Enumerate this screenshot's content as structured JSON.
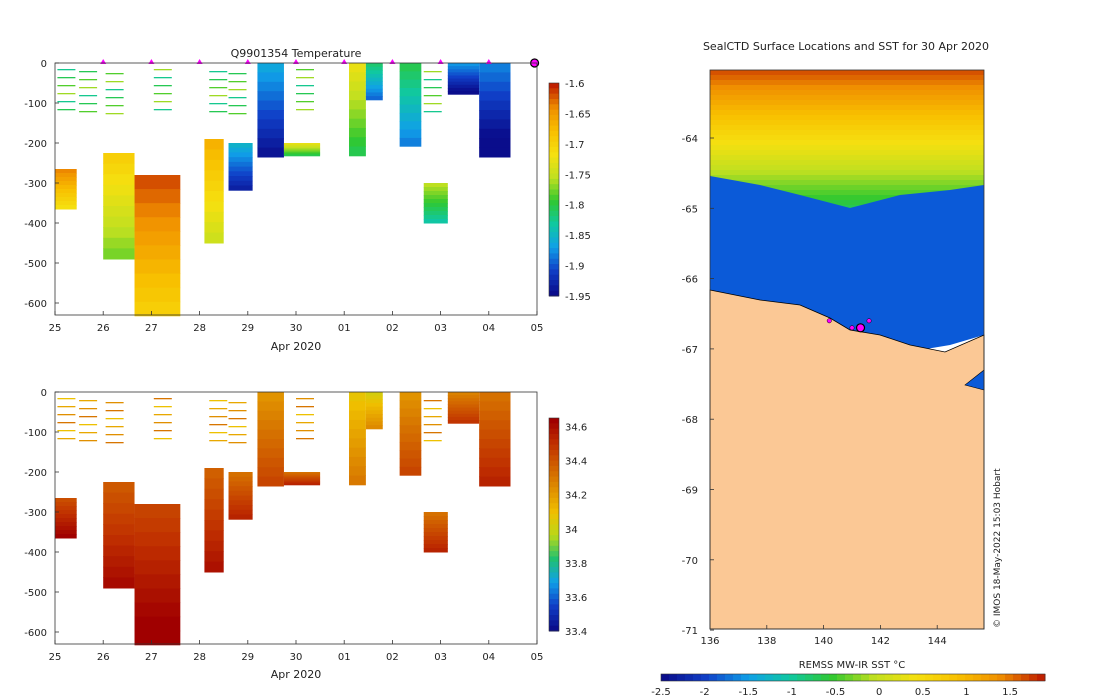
{
  "colors": {
    "temp_scale": [
      "#0a0d8c",
      "#1040c8",
      "#10a0e8",
      "#10c8a0",
      "#30c830",
      "#c0e020",
      "#f5e010",
      "#f8c000",
      "#f09000",
      "#c02000"
    ],
    "sal_scale": [
      "#0a0d8c",
      "#1040c8",
      "#10a0e8",
      "#20c070",
      "#b8d818",
      "#f0c000",
      "#e09000",
      "#d06000",
      "#c03000",
      "#a00000"
    ],
    "land": "#fbc895",
    "marker": "#ff00ff",
    "ice_blue": "#0b5ad8"
  },
  "chart_data": [
    {
      "type": "heatmap",
      "title": "Q9901354  Temperature",
      "xlabel": "Apr 2020",
      "ylabel": "",
      "x_tick_labels": [
        "25",
        "26",
        "27",
        "28",
        "29",
        "30",
        "01",
        "02",
        "03",
        "04",
        "05"
      ],
      "x_range_days": [
        25,
        35
      ],
      "y_tick_labels": [
        "0",
        "-100",
        "-200",
        "-300",
        "-400",
        "-500",
        "-600"
      ],
      "ylim": [
        -630,
        0
      ],
      "colorbar_ticks": [
        "-1.6",
        "-1.65",
        "-1.7",
        "-1.75",
        "-1.8",
        "-1.85",
        "-1.9",
        "-1.95"
      ],
      "colorbar_range": [
        -1.95,
        -1.6
      ],
      "surface_markers_day": [
        26,
        27,
        28,
        29,
        30,
        31,
        32,
        33,
        34,
        34.95
      ],
      "profiles": [
        {
          "start": 25.0,
          "end": 25.45,
          "top": -265,
          "bottom": -365,
          "value": -1.68
        },
        {
          "start": 26.0,
          "end": 26.65,
          "top": -225,
          "bottom": -490,
          "value": -1.74
        },
        {
          "start": 26.65,
          "end": 27.6,
          "top": -280,
          "bottom": -632,
          "value": -1.66
        },
        {
          "start": 28.1,
          "end": 28.5,
          "top": -190,
          "bottom": -450,
          "value": -1.71
        },
        {
          "start": 28.6,
          "end": 29.1,
          "top": -200,
          "bottom": -318,
          "value": -1.9
        },
        {
          "start": 29.2,
          "end": 29.75,
          "top": 0,
          "bottom": -235,
          "value": -1.91
        },
        {
          "start": 29.75,
          "end": 30.5,
          "top": -200,
          "bottom": -232,
          "value": -1.77
        },
        {
          "start": 31.1,
          "end": 31.45,
          "top": 0,
          "bottom": -232,
          "value": -1.77
        },
        {
          "start": 31.45,
          "end": 31.8,
          "top": 0,
          "bottom": -92,
          "value": -1.86
        },
        {
          "start": 32.15,
          "end": 32.6,
          "top": 0,
          "bottom": -208,
          "value": -1.85
        },
        {
          "start": 32.65,
          "end": 33.15,
          "top": -300,
          "bottom": -400,
          "value": -1.8
        },
        {
          "start": 33.15,
          "end": 33.8,
          "top": 0,
          "bottom": -78,
          "value": -1.92
        },
        {
          "start": 33.8,
          "end": 34.45,
          "top": 0,
          "bottom": -235,
          "value": -1.93
        }
      ]
    },
    {
      "type": "heatmap",
      "title": "",
      "xlabel": "Apr 2020",
      "ylabel": "",
      "x_tick_labels": [
        "25",
        "26",
        "27",
        "28",
        "29",
        "30",
        "01",
        "02",
        "03",
        "04",
        "05"
      ],
      "x_range_days": [
        25,
        35
      ],
      "y_tick_labels": [
        "0",
        "-100",
        "-200",
        "-300",
        "-400",
        "-500",
        "-600"
      ],
      "ylim": [
        -630,
        0
      ],
      "colorbar_ticks": [
        "34.6",
        "34.4",
        "34.2",
        "34",
        "33.8",
        "33.6",
        "33.4"
      ],
      "colorbar_range": [
        33.4,
        34.65
      ],
      "profiles": [
        {
          "start": 25.0,
          "end": 25.45,
          "top": -265,
          "bottom": -365,
          "value": 34.55
        },
        {
          "start": 26.0,
          "end": 26.65,
          "top": -225,
          "bottom": -490,
          "value": 34.52
        },
        {
          "start": 26.65,
          "end": 27.6,
          "top": -280,
          "bottom": -632,
          "value": 34.58
        },
        {
          "start": 28.1,
          "end": 28.5,
          "top": -190,
          "bottom": -450,
          "value": 34.5
        },
        {
          "start": 28.6,
          "end": 29.1,
          "top": -200,
          "bottom": -318,
          "value": 34.45
        },
        {
          "start": 29.2,
          "end": 29.75,
          "top": 0,
          "bottom": -235,
          "value": 34.35
        },
        {
          "start": 29.75,
          "end": 30.5,
          "top": -200,
          "bottom": -232,
          "value": 34.45
        },
        {
          "start": 31.1,
          "end": 31.45,
          "top": 0,
          "bottom": -232,
          "value": 34.2
        },
        {
          "start": 31.45,
          "end": 31.8,
          "top": 0,
          "bottom": -92,
          "value": 34.15
        },
        {
          "start": 32.15,
          "end": 32.6,
          "top": 0,
          "bottom": -208,
          "value": 34.35
        },
        {
          "start": 32.65,
          "end": 33.15,
          "top": -300,
          "bottom": -400,
          "value": 34.45
        },
        {
          "start": 33.15,
          "end": 33.8,
          "top": 0,
          "bottom": -78,
          "value": 34.4
        },
        {
          "start": 33.8,
          "end": 34.45,
          "top": 0,
          "bottom": -235,
          "value": 34.45
        }
      ]
    },
    {
      "type": "heatmap",
      "title": "SealCTD Surface Locations and SST for 30 Apr 2020",
      "xlabel": "REMSS MW-IR SST °C",
      "x_tick_labels": [
        "136",
        "138",
        "140",
        "142",
        "144"
      ],
      "xlim": [
        136,
        146
      ],
      "y_tick_labels": [
        "-64",
        "-65",
        "-66",
        "-67",
        "-68",
        "-69",
        "-70",
        "-71"
      ],
      "ylim": [
        -71,
        -63
      ],
      "colorbar_ticks": [
        "-2.5",
        "-2",
        "-1.5",
        "-1",
        "-0.5",
        "0",
        "0.5",
        "1",
        "1.5"
      ],
      "colorbar_range": [
        -2.5,
        1.9
      ],
      "credit": "© IMOS 18-May-2022 15:03 Hobart",
      "seal_surface_locations": [
        [
          141.3,
          -66.7
        ],
        [
          141.6,
          -66.6
        ],
        [
          141.0,
          -66.7
        ],
        [
          140.2,
          -66.6
        ]
      ]
    }
  ]
}
